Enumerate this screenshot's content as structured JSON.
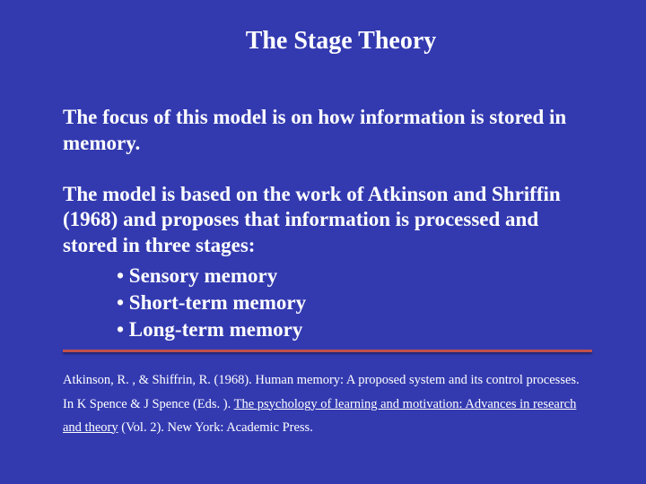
{
  "slide": {
    "background_color": "#333ab0",
    "text_color": "#ffffff",
    "hr_color": "#c0504d",
    "font_family": "Times New Roman",
    "title": "The Stage Theory",
    "title_fontsize": 28,
    "body_fontsize": 23,
    "citation_fontsize": 14.5,
    "para1": "The focus of this model is on how information is stored in memory.",
    "para2": "The model is based on the work of Atkinson and Shriffin (1968) and proposes that information is processed and stored in three stages:",
    "bullets": [
      "• Sensory memory",
      "• Short-term memory",
      "• Long-term memory"
    ],
    "citation": {
      "part1": "Atkinson, R. , & Shiffrin, R. (1968). Human memory: A proposed system and its control processes. In K Spence & J Spence (Eds. ). ",
      "underline1": "The psychology of learning and motivation: Advances in research and theory",
      "part2": " (Vol. 2). New York: Academic Press."
    }
  }
}
